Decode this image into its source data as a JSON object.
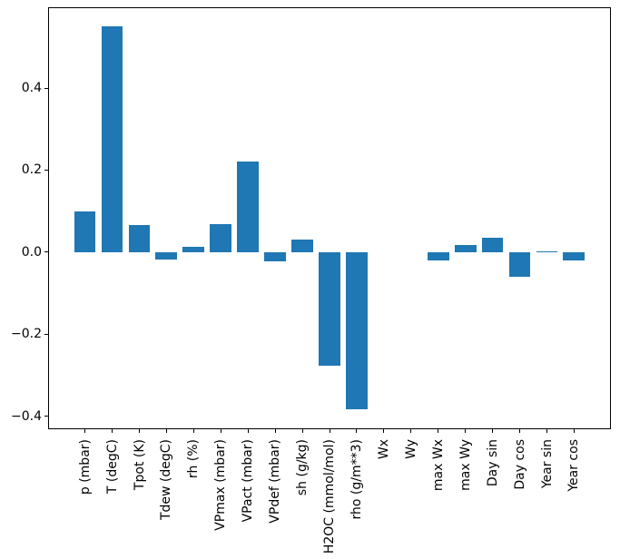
{
  "figure": {
    "background": "#ffffff",
    "axis_color": "#000000",
    "tick_label_color": "#000000"
  },
  "chart_data": {
    "type": "bar",
    "title": "",
    "xlabel": "",
    "ylabel": "",
    "categories": [
      "p (mbar)",
      "T (degC)",
      "Tpot (K)",
      "Tdew (degC)",
      "rh (%)",
      "VPmax (mbar)",
      "VPact (mbar)",
      "VPdef (mbar)",
      "sh (g/kg)",
      "H2OC (mmol/mol)",
      "rho (g/m**3)",
      "Wx",
      "Wy",
      "max Wx",
      "max Wy",
      "Day sin",
      "Day cos",
      "Year sin",
      "Year cos"
    ],
    "values": [
      0.1,
      0.55,
      0.066,
      -0.018,
      0.012,
      0.068,
      0.221,
      -0.022,
      0.031,
      -0.278,
      -0.384,
      0.0,
      0.0,
      -0.02,
      0.017,
      0.035,
      -0.061,
      0.002,
      -0.02
    ],
    "bar_color": "#1f77b4",
    "bar_width": 0.8,
    "xlim": [
      -1.34,
      19.34
    ],
    "ylim": [
      -0.431,
      0.597
    ],
    "yticks": [
      0.4,
      0.2,
      0.0,
      -0.2,
      -0.4
    ],
    "ytick_labels": [
      "0.4",
      "0.2",
      "0.0",
      "−0.2",
      "−0.4"
    ],
    "xtick_rotation": 90,
    "grid": false,
    "legend": "none"
  }
}
